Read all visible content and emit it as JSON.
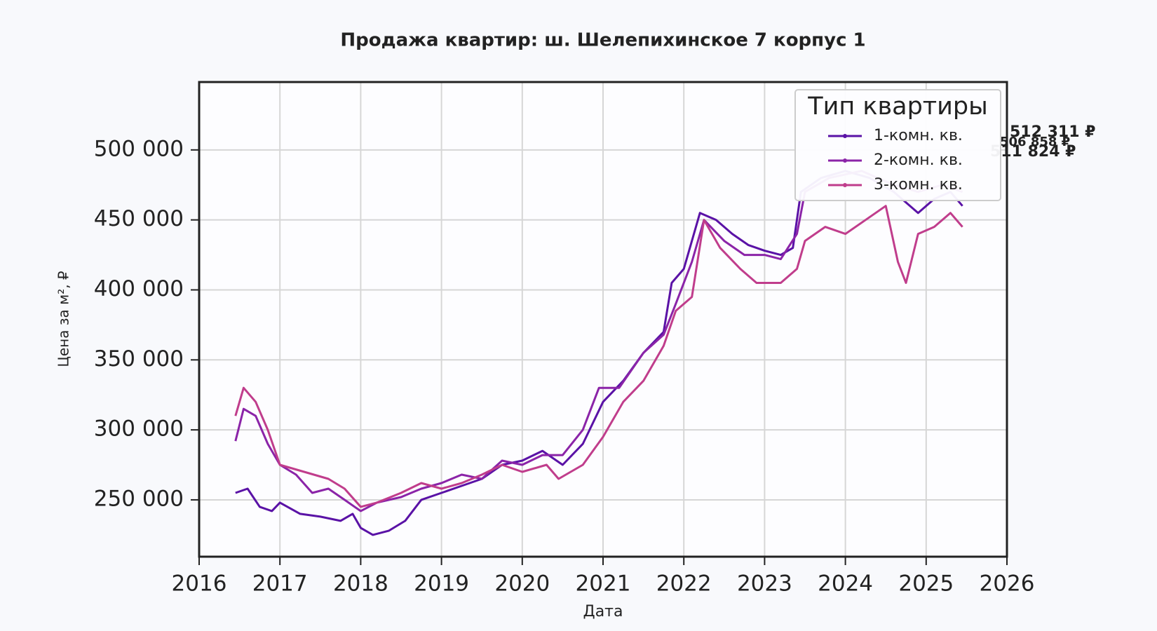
{
  "chart_data": {
    "type": "line",
    "title": "Продажа квартир: ш. Шелепихинское 7 корпус 1",
    "x_label": "Дата",
    "y_label": "Цена за м², ₽",
    "xlim": [
      2016,
      2026
    ],
    "xticks": [
      2016,
      2017,
      2018,
      2019,
      2020,
      2021,
      2022,
      2023,
      2024,
      2025,
      2026
    ],
    "ylim": [
      209400,
      548500
    ],
    "yticks": [
      {
        "value": 250000,
        "label": "250 000"
      },
      {
        "value": 300000,
        "label": "300 000"
      },
      {
        "value": 350000,
        "label": "350 000"
      },
      {
        "value": 400000,
        "label": "400 000"
      },
      {
        "value": 450000,
        "label": "450 000"
      },
      {
        "value": 500000,
        "label": "500 000"
      }
    ],
    "grid": true,
    "legend_title": "Тип квартиры",
    "legend_position": "upper right",
    "series": [
      {
        "name": "1-комн. кв.",
        "color": "#5a12a6",
        "x": [
          2016.45,
          2016.6,
          2016.75,
          2016.9,
          2017.0,
          2017.25,
          2017.5,
          2017.75,
          2017.9,
          2018.0,
          2018.15,
          2018.35,
          2018.55,
          2018.75,
          2019.0,
          2019.25,
          2019.5,
          2019.75,
          2020.0,
          2020.25,
          2020.5,
          2020.75,
          2021.0,
          2021.25,
          2021.5,
          2021.75,
          2021.85,
          2022.0,
          2022.2,
          2022.4,
          2022.6,
          2022.8,
          2023.0,
          2023.2,
          2023.35,
          2023.45,
          2023.7,
          2024.0,
          2024.3,
          2024.6,
          2024.9,
          2025.1,
          2025.3,
          2025.45
        ],
        "values": [
          255000,
          258000,
          245000,
          242000,
          248000,
          240000,
          238000,
          235000,
          240000,
          230000,
          225000,
          228000,
          235000,
          250000,
          255000,
          260000,
          265000,
          275000,
          278000,
          285000,
          275000,
          290000,
          320000,
          335000,
          355000,
          370000,
          405000,
          415000,
          455000,
          450000,
          440000,
          432000,
          428000,
          425000,
          430000,
          470000,
          480000,
          485000,
          480000,
          470000,
          455000,
          465000,
          470000,
          460000
        ]
      },
      {
        "name": "2-комн. кв.",
        "color": "#8b24a8",
        "x": [
          2016.45,
          2016.55,
          2016.7,
          2016.85,
          2017.0,
          2017.2,
          2017.4,
          2017.6,
          2017.8,
          2018.0,
          2018.2,
          2018.5,
          2018.75,
          2019.0,
          2019.25,
          2019.5,
          2019.75,
          2020.0,
          2020.25,
          2020.5,
          2020.75,
          2020.95,
          2021.2,
          2021.5,
          2021.75,
          2021.9,
          2022.1,
          2022.25,
          2022.5,
          2022.75,
          2023.0,
          2023.2,
          2023.4,
          2023.5,
          2023.8,
          2024.2,
          2024.6,
          2024.9,
          2025.2,
          2025.45
        ],
        "values": [
          292000,
          315000,
          310000,
          290000,
          275000,
          268000,
          255000,
          258000,
          250000,
          242000,
          248000,
          252000,
          258000,
          262000,
          268000,
          265000,
          278000,
          275000,
          282000,
          282000,
          300000,
          330000,
          330000,
          355000,
          368000,
          390000,
          420000,
          450000,
          435000,
          425000,
          425000,
          422000,
          440000,
          470000,
          480000,
          485000,
          475000,
          470000,
          475000,
          470000
        ]
      },
      {
        "name": "3-комн. кв.",
        "color": "#c03d8c",
        "x": [
          2016.45,
          2016.55,
          2016.7,
          2016.85,
          2017.0,
          2017.3,
          2017.6,
          2017.8,
          2018.0,
          2018.2,
          2018.5,
          2018.75,
          2019.0,
          2019.25,
          2019.5,
          2019.75,
          2020.0,
          2020.3,
          2020.45,
          2020.75,
          2021.0,
          2021.25,
          2021.5,
          2021.75,
          2021.9,
          2022.1,
          2022.25,
          2022.45,
          2022.7,
          2022.9,
          2023.2,
          2023.4,
          2023.5,
          2023.75,
          2024.0,
          2024.25,
          2024.5,
          2024.65,
          2024.75,
          2024.9,
          2025.1,
          2025.3,
          2025.45
        ],
        "values": [
          310000,
          330000,
          320000,
          300000,
          275000,
          270000,
          265000,
          258000,
          245000,
          248000,
          255000,
          262000,
          258000,
          262000,
          268000,
          275000,
          270000,
          275000,
          265000,
          275000,
          295000,
          320000,
          335000,
          360000,
          385000,
          395000,
          450000,
          430000,
          415000,
          405000,
          405000,
          415000,
          435000,
          445000,
          440000,
          450000,
          460000,
          420000,
          405000,
          440000,
          445000,
          455000,
          445000
        ]
      }
    ],
    "annotations": [
      {
        "label": "512 311 ₽",
        "value": 512311,
        "color": "#c03d8c"
      },
      {
        "label": "506 858 ₽",
        "value": 506858,
        "color": "#8b24a8"
      },
      {
        "label": "511 824 ₽",
        "value": 511824,
        "color": "#f0904a"
      }
    ]
  }
}
